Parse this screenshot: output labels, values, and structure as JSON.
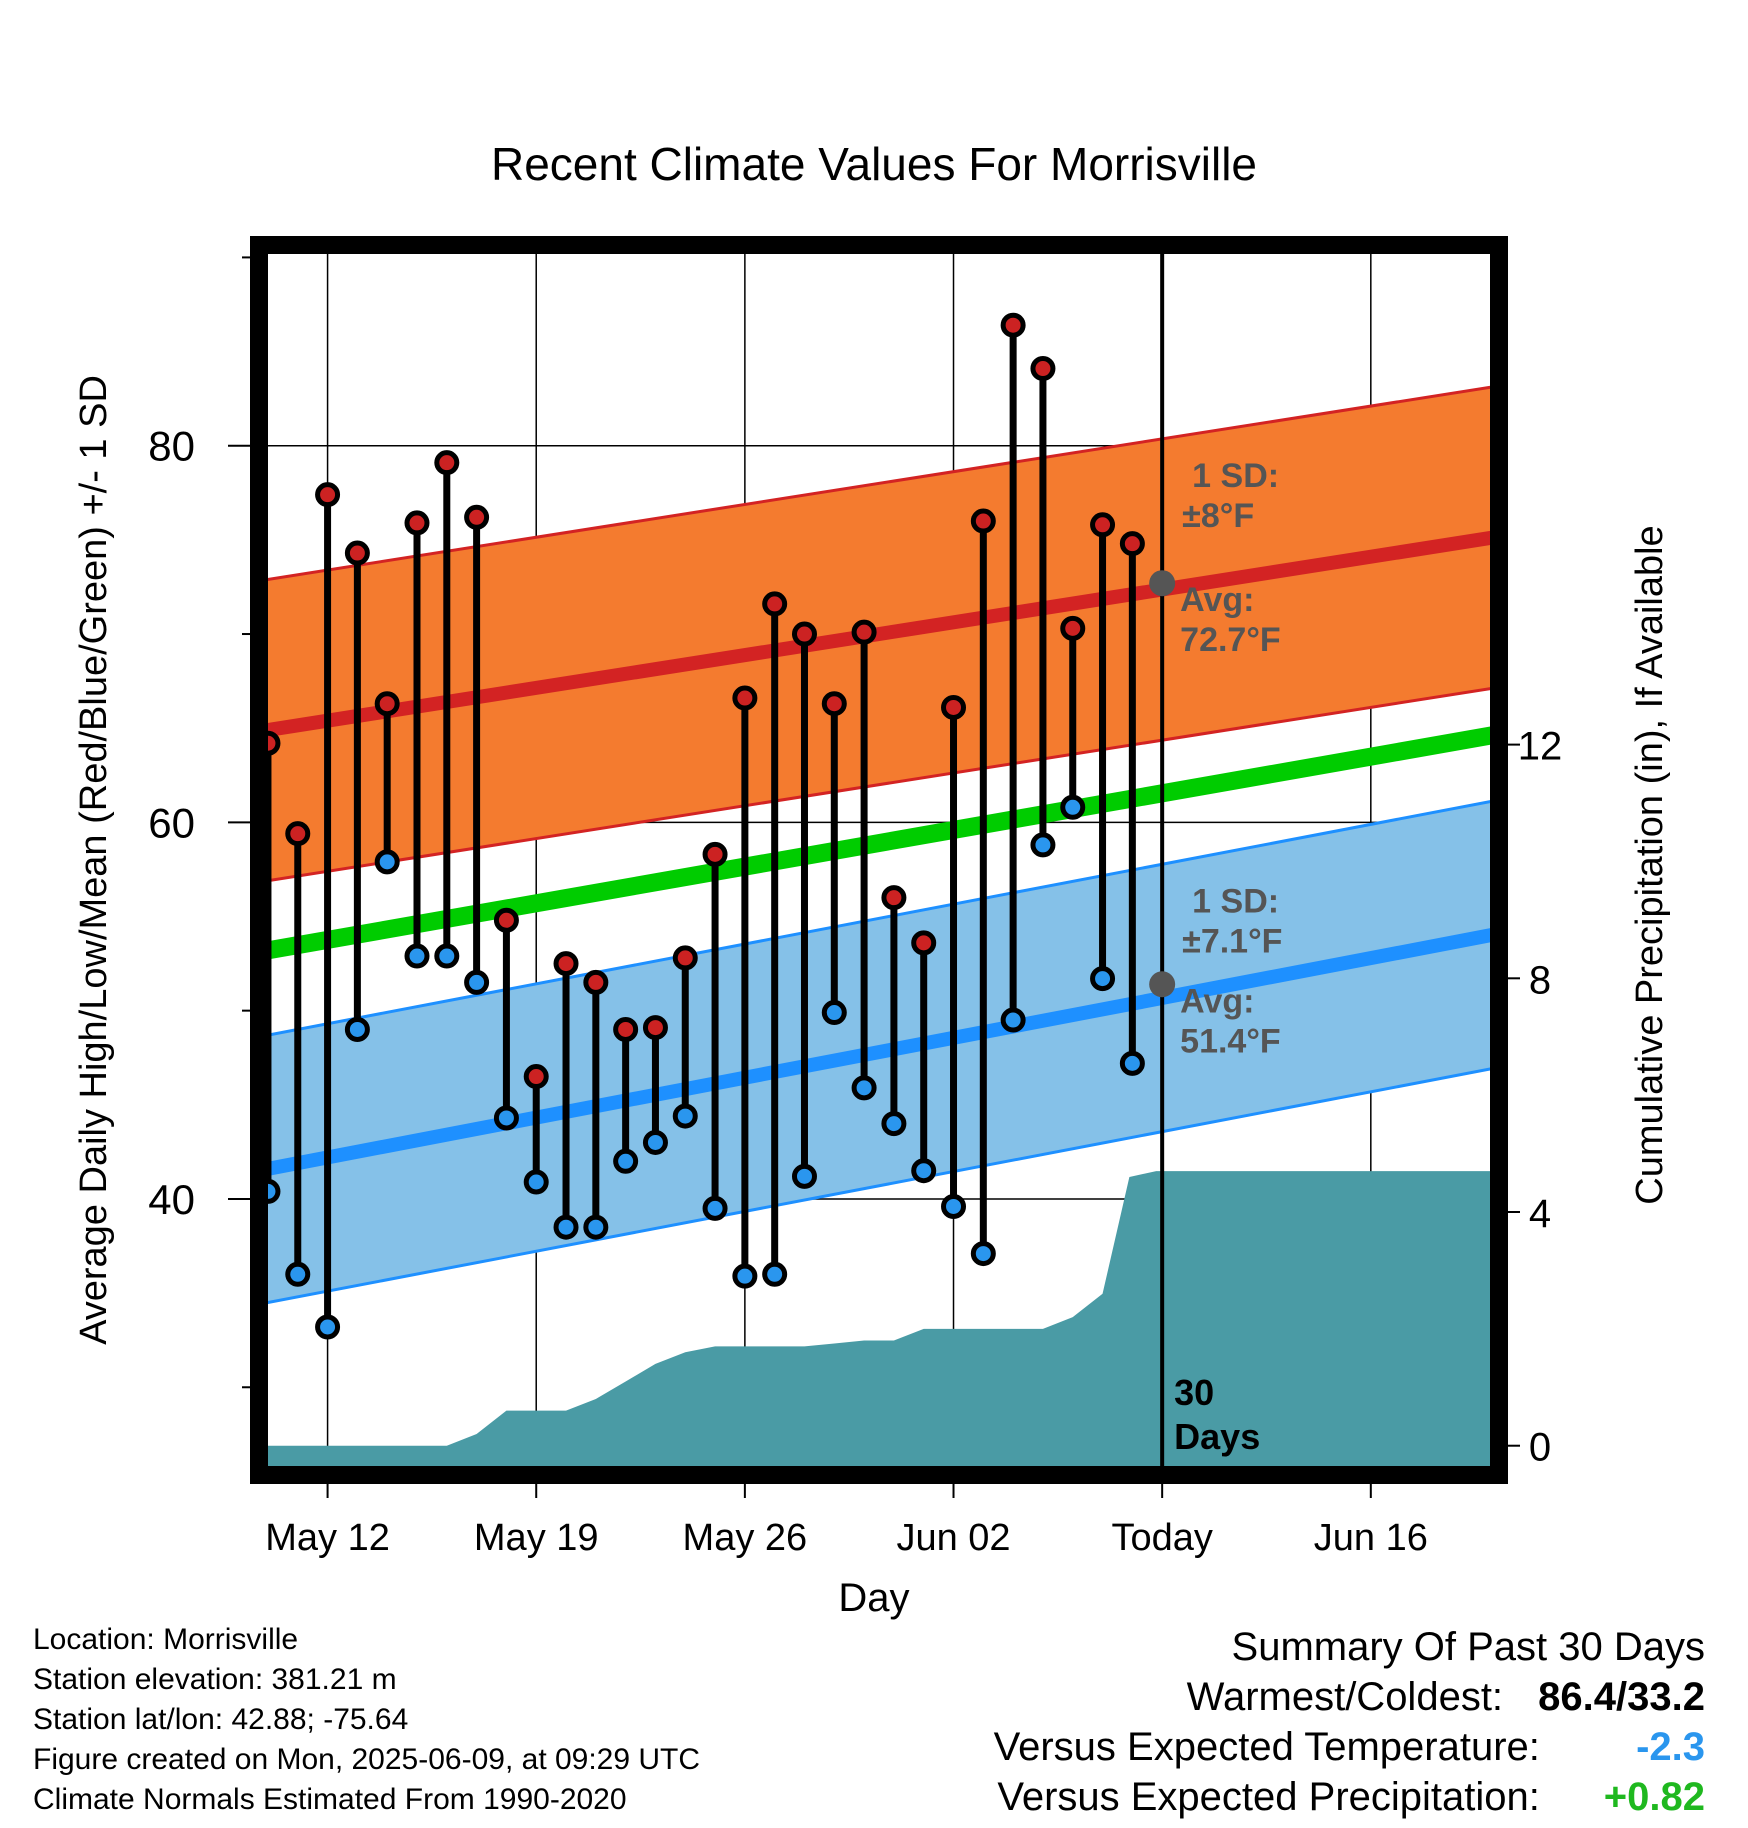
{
  "chart_data": {
    "type": "line",
    "title": "Recent Climate Values For Morrisville",
    "xlabel": "Day",
    "ylabel": "Average Daily High/Low/Mean (Red/Blue/Green) +/- 1 SD",
    "y2label": "Cumulative Precipitation (in), If Available",
    "xlim": [
      -2.2,
      39.2
    ],
    "ylim": [
      25.5,
      90.5
    ],
    "y2lim": [
      -0.45,
      20.5
    ],
    "y_ticks": [
      40,
      60,
      80
    ],
    "y2_ticks": [
      0,
      4,
      8,
      12
    ],
    "x_ticks": [
      {
        "x": 0,
        "label": "May 12"
      },
      {
        "x": 7,
        "label": "May 19"
      },
      {
        "x": 14,
        "label": "May 26"
      },
      {
        "x": 21,
        "label": "Jun 02"
      },
      {
        "x": 28,
        "label": "Today"
      },
      {
        "x": 35,
        "label": "Jun 16"
      }
    ],
    "grid": true,
    "days": [
      -2,
      -1,
      0,
      1,
      2,
      3,
      4,
      5,
      6,
      7,
      8,
      9,
      10,
      11,
      12,
      13,
      14,
      15,
      16,
      17,
      18,
      19,
      20,
      21,
      22,
      23,
      24,
      25,
      26,
      27
    ],
    "highs": [
      64.2,
      59.4,
      77.4,
      74.3,
      66.3,
      75.9,
      79.1,
      76.2,
      54.8,
      46.5,
      52.5,
      51.5,
      49.0,
      49.1,
      52.8,
      58.3,
      66.6,
      71.6,
      70.0,
      66.3,
      70.1,
      56.0,
      53.6,
      66.1,
      76.0,
      86.4,
      84.1,
      70.3,
      75.8,
      74.8
    ],
    "lows": [
      40.4,
      36.0,
      33.2,
      49.0,
      57.9,
      52.9,
      52.9,
      51.5,
      44.3,
      40.9,
      38.5,
      38.5,
      42.0,
      43.0,
      44.4,
      39.5,
      35.9,
      36.0,
      41.2,
      49.9,
      45.9,
      44.0,
      41.5,
      39.6,
      37.1,
      49.5,
      58.8,
      60.8,
      51.7,
      47.2
    ],
    "normal_high": {
      "start": 64.9,
      "end": 75.1,
      "avg_today": 72.7,
      "sd": 8,
      "sd_label": "1 SD:",
      "sd_text": "±8°F",
      "avg_label": "Avg:",
      "avg_text": "72.7°F"
    },
    "normal_low": {
      "start": 41.6,
      "end": 54.0,
      "avg_today": 51.4,
      "sd": 7.1,
      "sd_label": "1 SD:",
      "sd_text": "±7.1°F",
      "avg_label": "Avg:",
      "avg_text": "51.4°F"
    },
    "normal_mean": {
      "start": 53.2,
      "end": 64.6
    },
    "precip": {
      "x": [
        -2,
        2,
        3,
        4,
        5,
        6,
        7,
        8,
        9,
        10,
        11,
        12,
        13,
        14,
        15,
        16,
        17,
        18,
        19,
        20,
        21,
        22,
        23,
        24,
        25,
        26,
        26.9,
        27.8,
        39
      ],
      "y": [
        0,
        0,
        0,
        0,
        0.2,
        0.6,
        0.6,
        0.6,
        0.8,
        1.1,
        1.4,
        1.6,
        1.7,
        1.7,
        1.7,
        1.7,
        1.75,
        1.8,
        1.8,
        2.0,
        2.0,
        2.0,
        2.0,
        2.0,
        2.2,
        2.6,
        4.6,
        4.7,
        4.7
      ]
    },
    "today_marker": {
      "x": 28,
      "label_line1": "30",
      "label_line2": "Days"
    },
    "colors": {
      "high_band": "#f47b2f",
      "high_line": "#d32323",
      "low_band": "#85c1e8",
      "low_line": "#1e90ff",
      "mean_line": "#00cc00",
      "precip_fill": "#4a9ba5",
      "high_dot": "#cc2222",
      "low_dot": "#2a96ee",
      "annotation": "#555555"
    }
  },
  "footer": {
    "location": "Location: Morrisville",
    "elevation": "Station elevation: 381.21 m",
    "latlon": "Station lat/lon: 42.88; -75.64",
    "created": "Figure created on Mon, 2025-06-09, at 09:29 UTC",
    "normals": "Climate Normals Estimated From 1990-2020"
  },
  "summary": {
    "title": "Summary Of Past 30 Days",
    "warmest_label": "Warmest/Coldest:",
    "warmest_value": "86.4/33.2",
    "temp_label": "Versus Expected Temperature:",
    "temp_value": "-2.3",
    "temp_color": "#2a96ee",
    "precip_label": "Versus Expected Precipitation:",
    "precip_value": "+0.82",
    "precip_color": "#1fb81f"
  }
}
